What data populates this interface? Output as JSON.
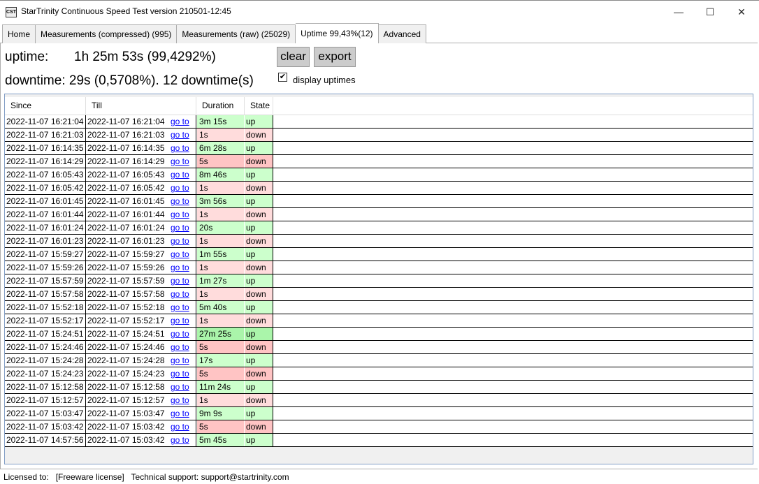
{
  "window": {
    "title": "StarTrinity Continuous Speed Test version 210501-12:45",
    "icon_text": "CST"
  },
  "tabs": [
    {
      "label": "Home"
    },
    {
      "label": "Measurements (compressed)  (995)"
    },
    {
      "label": "Measurements (raw)  (25029)"
    },
    {
      "label": "Uptime  99,43%(12)",
      "active": true
    },
    {
      "label": "Advanced"
    }
  ],
  "summary": {
    "uptime_label": "uptime:",
    "uptime_value": "1h 25m 53s (99,4292%)",
    "downtime_text": "downtime: 29s (0,5708%). 12 downtime(s)"
  },
  "buttons": {
    "clear": "clear",
    "export": "export"
  },
  "display_uptimes": {
    "label": "display uptimes",
    "checked": true
  },
  "table": {
    "columns": [
      "Since",
      "Till",
      "Duration",
      "State"
    ],
    "link_label": "go to",
    "colors": {
      "up": "#ccffcc",
      "up_strong": "#aaf5aa",
      "down": "#ffdcdc",
      "down_strong": "#ffc4c4"
    },
    "rows": [
      {
        "since": "2022-11-07 16:21:04",
        "till": "2022-11-07 16:21:04",
        "duration": "3m 15s",
        "state": "up",
        "tone": "up"
      },
      {
        "since": "2022-11-07 16:21:03",
        "till": "2022-11-07 16:21:03",
        "duration": "1s",
        "state": "down",
        "tone": "down"
      },
      {
        "since": "2022-11-07 16:14:35",
        "till": "2022-11-07 16:14:35",
        "duration": "6m 28s",
        "state": "up",
        "tone": "up"
      },
      {
        "since": "2022-11-07 16:14:29",
        "till": "2022-11-07 16:14:29",
        "duration": "5s",
        "state": "down",
        "tone": "down_strong"
      },
      {
        "since": "2022-11-07 16:05:43",
        "till": "2022-11-07 16:05:43",
        "duration": "8m 46s",
        "state": "up",
        "tone": "up"
      },
      {
        "since": "2022-11-07 16:05:42",
        "till": "2022-11-07 16:05:42",
        "duration": "1s",
        "state": "down",
        "tone": "down"
      },
      {
        "since": "2022-11-07 16:01:45",
        "till": "2022-11-07 16:01:45",
        "duration": "3m 56s",
        "state": "up",
        "tone": "up"
      },
      {
        "since": "2022-11-07 16:01:44",
        "till": "2022-11-07 16:01:44",
        "duration": "1s",
        "state": "down",
        "tone": "down"
      },
      {
        "since": "2022-11-07 16:01:24",
        "till": "2022-11-07 16:01:24",
        "duration": "20s",
        "state": "up",
        "tone": "up"
      },
      {
        "since": "2022-11-07 16:01:23",
        "till": "2022-11-07 16:01:23",
        "duration": "1s",
        "state": "down",
        "tone": "down"
      },
      {
        "since": "2022-11-07 15:59:27",
        "till": "2022-11-07 15:59:27",
        "duration": "1m 55s",
        "state": "up",
        "tone": "up"
      },
      {
        "since": "2022-11-07 15:59:26",
        "till": "2022-11-07 15:59:26",
        "duration": "1s",
        "state": "down",
        "tone": "down"
      },
      {
        "since": "2022-11-07 15:57:59",
        "till": "2022-11-07 15:57:59",
        "duration": "1m 27s",
        "state": "up",
        "tone": "up"
      },
      {
        "since": "2022-11-07 15:57:58",
        "till": "2022-11-07 15:57:58",
        "duration": "1s",
        "state": "down",
        "tone": "down"
      },
      {
        "since": "2022-11-07 15:52:18",
        "till": "2022-11-07 15:52:18",
        "duration": "5m 40s",
        "state": "up",
        "tone": "up"
      },
      {
        "since": "2022-11-07 15:52:17",
        "till": "2022-11-07 15:52:17",
        "duration": "1s",
        "state": "down",
        "tone": "down"
      },
      {
        "since": "2022-11-07 15:24:51",
        "till": "2022-11-07 15:24:51",
        "duration": "27m 25s",
        "state": "up",
        "tone": "up_strong"
      },
      {
        "since": "2022-11-07 15:24:46",
        "till": "2022-11-07 15:24:46",
        "duration": "5s",
        "state": "down",
        "tone": "down_strong"
      },
      {
        "since": "2022-11-07 15:24:28",
        "till": "2022-11-07 15:24:28",
        "duration": "17s",
        "state": "up",
        "tone": "up"
      },
      {
        "since": "2022-11-07 15:24:23",
        "till": "2022-11-07 15:24:23",
        "duration": "5s",
        "state": "down",
        "tone": "down_strong"
      },
      {
        "since": "2022-11-07 15:12:58",
        "till": "2022-11-07 15:12:58",
        "duration": "11m 24s",
        "state": "up",
        "tone": "up"
      },
      {
        "since": "2022-11-07 15:12:57",
        "till": "2022-11-07 15:12:57",
        "duration": "1s",
        "state": "down",
        "tone": "down"
      },
      {
        "since": "2022-11-07 15:03:47",
        "till": "2022-11-07 15:03:47",
        "duration": "9m 9s",
        "state": "up",
        "tone": "up"
      },
      {
        "since": "2022-11-07 15:03:42",
        "till": "2022-11-07 15:03:42",
        "duration": "5s",
        "state": "down",
        "tone": "down_strong"
      },
      {
        "since": "2022-11-07 14:57:56",
        "till": "2022-11-07 15:03:42",
        "duration": "5m 45s",
        "state": "up",
        "tone": "up"
      }
    ]
  },
  "status_bar": {
    "text": "Licensed to:   [Freeware license]   Technical support: support@startrinity.com"
  }
}
